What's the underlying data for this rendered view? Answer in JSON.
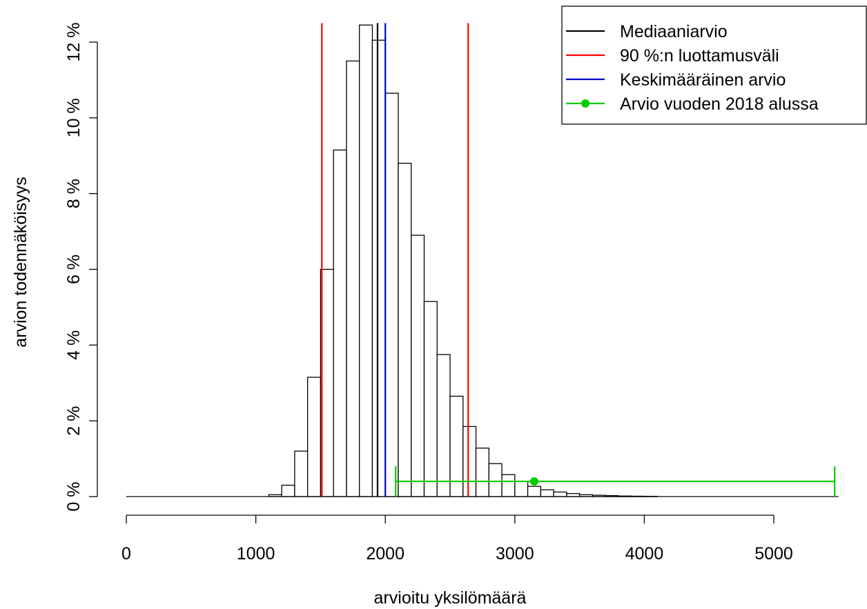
{
  "chart_data": {
    "type": "bar",
    "xlabel": "arvioitu yksilömäärä",
    "ylabel": "arvion todennäköisyys",
    "xlim": [
      0,
      5000
    ],
    "ylim": [
      0,
      12.5
    ],
    "x_ticks": [
      "0",
      "1000",
      "2000",
      "3000",
      "4000",
      "5000"
    ],
    "y_ticks": [
      "0 %",
      "2 %",
      "4 %",
      "6 %",
      "8 %",
      "10 %",
      "12 %"
    ],
    "y_tick_values": [
      0,
      2,
      4,
      6,
      8,
      10,
      12
    ],
    "x_tick_values": [
      0,
      1000,
      2000,
      3000,
      4000,
      5000
    ],
    "bin_width": 100,
    "bins": [
      {
        "x0": 1100,
        "x1": 1200,
        "value": 0.05
      },
      {
        "x0": 1200,
        "x1": 1300,
        "value": 0.3
      },
      {
        "x0": 1300,
        "x1": 1400,
        "value": 1.2
      },
      {
        "x0": 1400,
        "x1": 1500,
        "value": 3.15
      },
      {
        "x0": 1500,
        "x1": 1600,
        "value": 6.0
      },
      {
        "x0": 1600,
        "x1": 1700,
        "value": 9.15
      },
      {
        "x0": 1700,
        "x1": 1800,
        "value": 11.5
      },
      {
        "x0": 1800,
        "x1": 1900,
        "value": 12.45
      },
      {
        "x0": 1900,
        "x1": 2000,
        "value": 12.05
      },
      {
        "x0": 2000,
        "x1": 2100,
        "value": 10.65
      },
      {
        "x0": 2100,
        "x1": 2200,
        "value": 8.8
      },
      {
        "x0": 2200,
        "x1": 2300,
        "value": 6.9
      },
      {
        "x0": 2300,
        "x1": 2400,
        "value": 5.15
      },
      {
        "x0": 2400,
        "x1": 2500,
        "value": 3.75
      },
      {
        "x0": 2500,
        "x1": 2600,
        "value": 2.65
      },
      {
        "x0": 2600,
        "x1": 2700,
        "value": 1.85
      },
      {
        "x0": 2700,
        "x1": 2800,
        "value": 1.28
      },
      {
        "x0": 2800,
        "x1": 2900,
        "value": 0.87
      },
      {
        "x0": 2900,
        "x1": 3000,
        "value": 0.58
      },
      {
        "x0": 3000,
        "x1": 3100,
        "value": 0.4
      },
      {
        "x0": 3100,
        "x1": 3200,
        "value": 0.27
      },
      {
        "x0": 3200,
        "x1": 3300,
        "value": 0.18
      },
      {
        "x0": 3300,
        "x1": 3400,
        "value": 0.12
      },
      {
        "x0": 3400,
        "x1": 3500,
        "value": 0.08
      },
      {
        "x0": 3500,
        "x1": 3600,
        "value": 0.05
      },
      {
        "x0": 3600,
        "x1": 3700,
        "value": 0.035
      },
      {
        "x0": 3700,
        "x1": 3800,
        "value": 0.025
      },
      {
        "x0": 3800,
        "x1": 3900,
        "value": 0.015
      },
      {
        "x0": 3900,
        "x1": 4000,
        "value": 0.01
      },
      {
        "x0": 4000,
        "x1": 4100,
        "value": 0.007
      }
    ],
    "baseline_range": [
      0,
      5500
    ],
    "vertical_lines": [
      {
        "name": "Mediaaniarvio",
        "x": 1940,
        "color": "#000000"
      },
      {
        "name": "90 %:n luottamusväli",
        "x": 1510,
        "color": "#ff0000"
      },
      {
        "name": "90 %:n luottamusväli",
        "x": 2640,
        "color": "#ff0000"
      },
      {
        "name": "Keskimääräinen arvio",
        "x": 2000,
        "color": "#0000cc"
      }
    ],
    "estimate_2018": {
      "name": "Arvio vuoden 2018 alussa",
      "point": 3150,
      "low": 2080,
      "high": 5470,
      "y": 0.4,
      "cap_half": 0.4,
      "color": "#00cc00"
    },
    "legend": {
      "placement": "top-right",
      "entries": [
        {
          "label": "Mediaaniarvio",
          "color": "#000000",
          "marker": false
        },
        {
          "label": "90 %:n luottamusväli",
          "color": "#ff0000",
          "marker": false
        },
        {
          "label": "Keskimääräinen arvio",
          "color": "#0000cc",
          "marker": false
        },
        {
          "label": "Arvio vuoden 2018 alussa",
          "color": "#00cc00",
          "marker": true
        }
      ]
    }
  }
}
